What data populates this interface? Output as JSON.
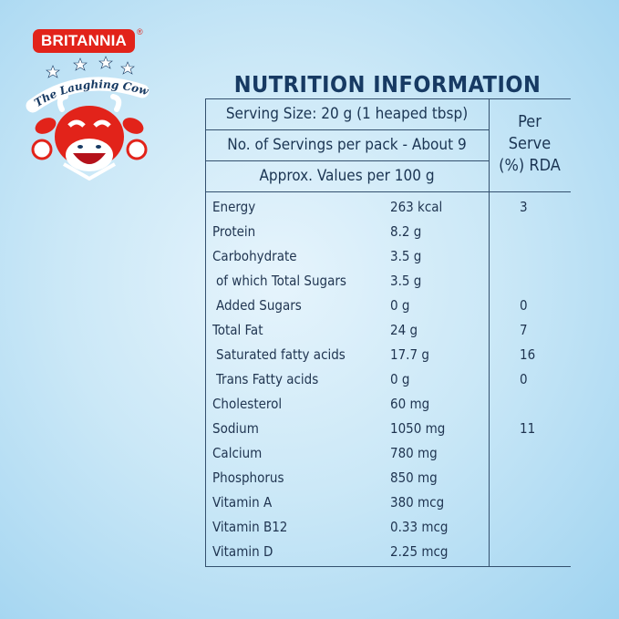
{
  "brand": {
    "name": "BRITANNIA",
    "sub_brand": "The Laughing Cow",
    "colors": {
      "red": "#e2231a",
      "navy": "#173a63"
    }
  },
  "title": "NUTRITION INFORMATION",
  "header": {
    "serving_size": "Serving Size: 20 g (1 heaped tbsp)",
    "servings_per_pack": "No. of Servings per pack - About 9",
    "approx_values": "Approx. Values per 100 g",
    "rda_line1": "Per",
    "rda_line2": "Serve",
    "rda_line3": "(%) RDA"
  },
  "rows": [
    {
      "name": "Energy",
      "value": "263 kcal",
      "rda": "3"
    },
    {
      "name": "Protein",
      "value": "8.2 g",
      "rda": ""
    },
    {
      "name": "Carbohydrate",
      "value": "3.5 g",
      "rda": ""
    },
    {
      "name": "of which Total Sugars",
      "value": "3.5 g",
      "rda": ""
    },
    {
      "name": "Added Sugars",
      "value": "0 g",
      "rda": "0"
    },
    {
      "name": "Total Fat",
      "value": "24 g",
      "rda": "7"
    },
    {
      "name": "Saturated fatty acids",
      "value": "17.7 g",
      "rda": "16"
    },
    {
      "name": "Trans Fatty acids",
      "value": "0 g",
      "rda": "0"
    },
    {
      "name": "Cholesterol",
      "value": "60 mg",
      "rda": ""
    },
    {
      "name": "Sodium",
      "value": "1050 mg",
      "rda": "11"
    },
    {
      "name": "Calcium",
      "value": "780 mg",
      "rda": ""
    },
    {
      "name": "Phosphorus",
      "value": "850 mg",
      "rda": ""
    },
    {
      "name": "Vitamin A",
      "value": "380 mcg",
      "rda": ""
    },
    {
      "name": "Vitamin B12",
      "value": "0.33 mcg",
      "rda": ""
    },
    {
      "name": "Vitamin D",
      "value": "2.25 mcg",
      "rda": ""
    }
  ]
}
